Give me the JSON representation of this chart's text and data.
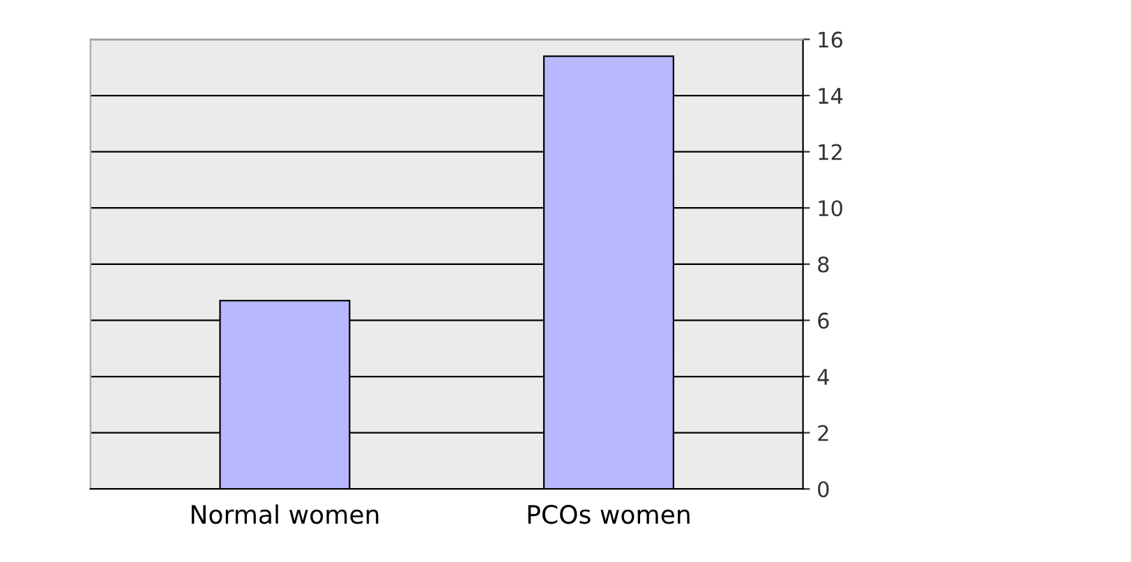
{
  "chart_data": {
    "type": "bar",
    "categories": [
      "Normal women",
      "PCOs women"
    ],
    "values": [
      6.7,
      15.4
    ],
    "color": "#b8b8ff",
    "ylim": [
      0,
      16
    ],
    "yticks": [
      0,
      2,
      4,
      6,
      8,
      10,
      12,
      14,
      16
    ],
    "grid": "y"
  }
}
